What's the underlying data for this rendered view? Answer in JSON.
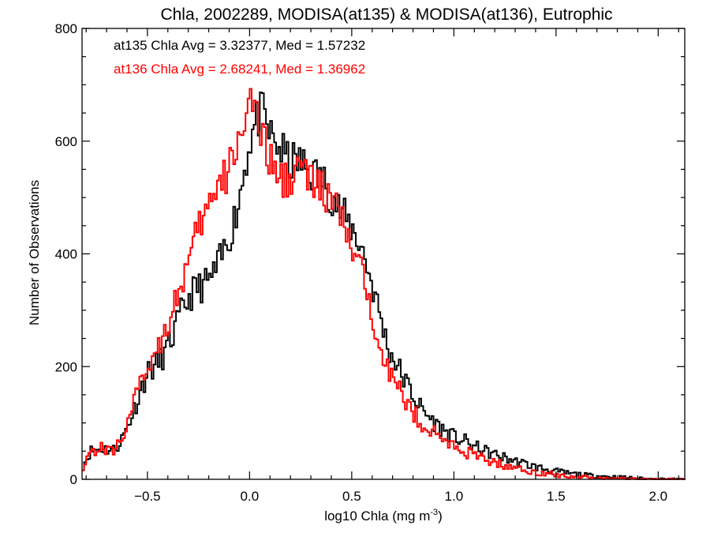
{
  "chart_data": {
    "type": "line",
    "title": "Chla, 2002289, MODISA(at135) & MODISA(at136), Eutrophic",
    "xlabel_main": "log10 Chla (mg m",
    "xlabel_sup": "-3",
    "xlabel_close": ")",
    "ylabel": "Number of Observations",
    "xlim": [
      -0.82,
      2.13
    ],
    "ylim": [
      0,
      800
    ],
    "x_ticks": [
      -0.5,
      0.0,
      0.5,
      1.0,
      1.5,
      2.0
    ],
    "x_tick_labels": [
      "−0.5",
      "0.0",
      "0.5",
      "1.0",
      "1.5",
      "2.0"
    ],
    "y_ticks": [
      0,
      200,
      400,
      600,
      800
    ],
    "y_tick_labels": [
      "0",
      "200",
      "400",
      "600",
      "800"
    ],
    "annotations": [
      {
        "text": "at135 Chla Avg = 3.32377, Med = 1.57232",
        "color": "#000000"
      },
      {
        "text": "at136 Chla Avg = 2.68241, Med = 1.36962",
        "color": "#ff0000"
      }
    ],
    "series": [
      {
        "color": "#000000",
        "points": [
          [
            -0.82,
            20
          ],
          [
            -0.78,
            50
          ],
          [
            -0.72,
            55
          ],
          [
            -0.66,
            52
          ],
          [
            -0.62,
            75
          ],
          [
            -0.58,
            110
          ],
          [
            -0.54,
            150
          ],
          [
            -0.5,
            190
          ],
          [
            -0.46,
            200
          ],
          [
            -0.42,
            220
          ],
          [
            -0.38,
            250
          ],
          [
            -0.34,
            290
          ],
          [
            -0.3,
            320
          ],
          [
            -0.26,
            340
          ],
          [
            -0.22,
            345
          ],
          [
            -0.18,
            360
          ],
          [
            -0.14,
            390
          ],
          [
            -0.1,
            430
          ],
          [
            -0.06,
            480
          ],
          [
            -0.02,
            560
          ],
          [
            0.0,
            600
          ],
          [
            0.02,
            620
          ],
          [
            0.04,
            640
          ],
          [
            0.06,
            650
          ],
          [
            0.08,
            630
          ],
          [
            0.1,
            610
          ],
          [
            0.12,
            600
          ],
          [
            0.16,
            580
          ],
          [
            0.2,
            560
          ],
          [
            0.24,
            565
          ],
          [
            0.28,
            550
          ],
          [
            0.32,
            540
          ],
          [
            0.36,
            530
          ],
          [
            0.4,
            505
          ],
          [
            0.44,
            480
          ],
          [
            0.48,
            455
          ],
          [
            0.52,
            435
          ],
          [
            0.56,
            400
          ],
          [
            0.6,
            345
          ],
          [
            0.64,
            290
          ],
          [
            0.68,
            230
          ],
          [
            0.72,
            205
          ],
          [
            0.76,
            175
          ],
          [
            0.8,
            150
          ],
          [
            0.84,
            125
          ],
          [
            0.88,
            110
          ],
          [
            0.92,
            95
          ],
          [
            0.96,
            85
          ],
          [
            1.0,
            75
          ],
          [
            1.05,
            68
          ],
          [
            1.1,
            58
          ],
          [
            1.15,
            50
          ],
          [
            1.2,
            44
          ],
          [
            1.25,
            38
          ],
          [
            1.3,
            32
          ],
          [
            1.35,
            27
          ],
          [
            1.4,
            22
          ],
          [
            1.45,
            18
          ],
          [
            1.5,
            14
          ],
          [
            1.55,
            11
          ],
          [
            1.6,
            9
          ],
          [
            1.65,
            7
          ],
          [
            1.7,
            6
          ],
          [
            1.75,
            5
          ],
          [
            1.8,
            4
          ],
          [
            1.85,
            3
          ],
          [
            1.9,
            2
          ],
          [
            1.95,
            1
          ],
          [
            2.0,
            1
          ],
          [
            2.13,
            0
          ]
        ]
      },
      {
        "color": "#ff0000",
        "points": [
          [
            -0.82,
            20
          ],
          [
            -0.78,
            50
          ],
          [
            -0.72,
            55
          ],
          [
            -0.66,
            50
          ],
          [
            -0.62,
            80
          ],
          [
            -0.58,
            120
          ],
          [
            -0.54,
            160
          ],
          [
            -0.5,
            200
          ],
          [
            -0.46,
            230
          ],
          [
            -0.42,
            260
          ],
          [
            -0.38,
            300
          ],
          [
            -0.34,
            340
          ],
          [
            -0.3,
            380
          ],
          [
            -0.26,
            430
          ],
          [
            -0.22,
            470
          ],
          [
            -0.18,
            500
          ],
          [
            -0.14,
            520
          ],
          [
            -0.1,
            550
          ],
          [
            -0.06,
            600
          ],
          [
            -0.02,
            650
          ],
          [
            0.0,
            680
          ],
          [
            0.02,
            660
          ],
          [
            0.04,
            620
          ],
          [
            0.06,
            600
          ],
          [
            0.08,
            585
          ],
          [
            0.1,
            570
          ],
          [
            0.12,
            540
          ],
          [
            0.16,
            530
          ],
          [
            0.2,
            540
          ],
          [
            0.24,
            555
          ],
          [
            0.28,
            540
          ],
          [
            0.32,
            520
          ],
          [
            0.36,
            510
          ],
          [
            0.4,
            495
          ],
          [
            0.44,
            470
          ],
          [
            0.48,
            430
          ],
          [
            0.52,
            390
          ],
          [
            0.56,
            350
          ],
          [
            0.6,
            295
          ],
          [
            0.64,
            245
          ],
          [
            0.68,
            195
          ],
          [
            0.72,
            165
          ],
          [
            0.76,
            140
          ],
          [
            0.8,
            120
          ],
          [
            0.84,
            100
          ],
          [
            0.88,
            88
          ],
          [
            0.92,
            78
          ],
          [
            0.96,
            68
          ],
          [
            1.0,
            58
          ],
          [
            1.05,
            50
          ],
          [
            1.1,
            42
          ],
          [
            1.15,
            36
          ],
          [
            1.2,
            30
          ],
          [
            1.25,
            25
          ],
          [
            1.3,
            20
          ],
          [
            1.35,
            16
          ],
          [
            1.4,
            13
          ],
          [
            1.45,
            10
          ],
          [
            1.5,
            8
          ],
          [
            1.55,
            6
          ],
          [
            1.6,
            5
          ],
          [
            1.65,
            4
          ],
          [
            1.7,
            3
          ],
          [
            1.75,
            2
          ],
          [
            1.8,
            2
          ],
          [
            1.85,
            1
          ],
          [
            1.9,
            1
          ],
          [
            1.95,
            0
          ],
          [
            2.0,
            0
          ],
          [
            2.13,
            0
          ]
        ]
      }
    ]
  }
}
